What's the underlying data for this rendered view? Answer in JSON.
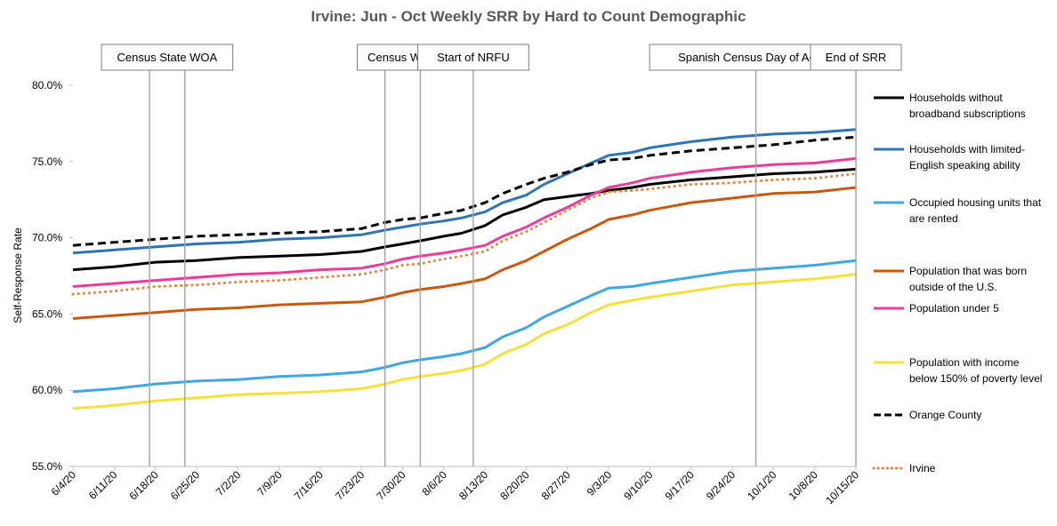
{
  "chart_data": {
    "type": "line",
    "title": "Irvine: Jun - Oct Weekly SRR by Hard to Count Demographic",
    "xlabel": "",
    "ylabel": "Self-Response Rate",
    "ylim": [
      55,
      80
    ],
    "yticks": [
      "55.0%",
      "60.0%",
      "65.0%",
      "70.0%",
      "75.0%",
      "80.0%"
    ],
    "ytick_values": [
      55,
      60,
      65,
      70,
      75,
      80
    ],
    "x_start": "6/4/20",
    "x_end": "10/15/20",
    "x_days": 133,
    "xticks": [
      {
        "label": "6/4/20",
        "day": 0
      },
      {
        "label": "6/11/20",
        "day": 7
      },
      {
        "label": "6/18/20",
        "day": 14
      },
      {
        "label": "6/25/20",
        "day": 21
      },
      {
        "label": "7/2/20",
        "day": 28
      },
      {
        "label": "7/9/20",
        "day": 35
      },
      {
        "label": "7/16/20",
        "day": 42
      },
      {
        "label": "7/23/20",
        "day": 49
      },
      {
        "label": "7/30/20",
        "day": 56
      },
      {
        "label": "8/6/20",
        "day": 63
      },
      {
        "label": "8/13/20",
        "day": 70
      },
      {
        "label": "8/20/20",
        "day": 77
      },
      {
        "label": "8/27/20",
        "day": 84
      },
      {
        "label": "9/3/20",
        "day": 91
      },
      {
        "label": "9/10/20",
        "day": 98
      },
      {
        "label": "9/17/20",
        "day": 105
      },
      {
        "label": "9/24/20",
        "day": 112
      },
      {
        "label": "10/1/20",
        "day": 119
      },
      {
        "label": "10/8/20",
        "day": 126
      },
      {
        "label": "10/15/20",
        "day": 133
      }
    ],
    "annotations": [
      {
        "label": "Census State WOA",
        "days": [
          13,
          19
        ]
      },
      {
        "label": "Census WOA",
        "days": [
          53,
          59
        ]
      },
      {
        "label": "Start of NRFU",
        "days": [
          68
        ]
      },
      {
        "label": "Spanish Census Day of Action",
        "days": [
          116
        ]
      },
      {
        "label": "End of SRR",
        "days": [
          133
        ]
      }
    ],
    "series": [
      {
        "name": "Households without broadband subscriptions",
        "color": "#000000",
        "style": "solid",
        "x": [
          0,
          7,
          14,
          21,
          28,
          35,
          42,
          49,
          53,
          56,
          59,
          63,
          66,
          70,
          73,
          77,
          80,
          84,
          88,
          91,
          95,
          98,
          105,
          112,
          119,
          126,
          133
        ],
        "y": [
          67.9,
          68.1,
          68.4,
          68.5,
          68.7,
          68.8,
          68.9,
          69.1,
          69.4,
          69.6,
          69.8,
          70.1,
          70.3,
          70.8,
          71.5,
          72.0,
          72.5,
          72.7,
          72.9,
          73.1,
          73.3,
          73.5,
          73.8,
          74.0,
          74.2,
          74.3,
          74.5
        ]
      },
      {
        "name": "Households with limited-English speaking ability",
        "color": "#2e75b6",
        "style": "solid",
        "x": [
          0,
          7,
          14,
          21,
          28,
          35,
          42,
          49,
          53,
          56,
          59,
          63,
          66,
          70,
          73,
          77,
          80,
          84,
          88,
          91,
          95,
          98,
          105,
          112,
          119,
          126,
          133
        ],
        "y": [
          69.0,
          69.2,
          69.4,
          69.6,
          69.7,
          69.9,
          70.0,
          70.2,
          70.5,
          70.7,
          70.9,
          71.1,
          71.3,
          71.7,
          72.3,
          72.8,
          73.5,
          74.2,
          74.9,
          75.4,
          75.6,
          75.9,
          76.3,
          76.6,
          76.8,
          76.9,
          77.1
        ]
      },
      {
        "name": "Occupied housing units that are rented",
        "color": "#41a7e0",
        "style": "solid",
        "x": [
          0,
          7,
          14,
          21,
          28,
          35,
          42,
          49,
          53,
          56,
          59,
          63,
          66,
          70,
          73,
          77,
          80,
          84,
          88,
          91,
          95,
          98,
          105,
          112,
          119,
          126,
          133
        ],
        "y": [
          59.9,
          60.1,
          60.4,
          60.6,
          60.7,
          60.9,
          61.0,
          61.2,
          61.5,
          61.8,
          62.0,
          62.2,
          62.4,
          62.8,
          63.5,
          64.1,
          64.8,
          65.5,
          66.2,
          66.7,
          66.8,
          67.0,
          67.4,
          67.8,
          68.0,
          68.2,
          68.5
        ]
      },
      {
        "name": "Population that was born outside of the U.S.",
        "color": "#c55a11",
        "style": "solid",
        "x": [
          0,
          7,
          14,
          21,
          28,
          35,
          42,
          49,
          53,
          56,
          59,
          63,
          66,
          70,
          73,
          77,
          80,
          84,
          88,
          91,
          95,
          98,
          105,
          112,
          119,
          126,
          133
        ],
        "y": [
          64.7,
          64.9,
          65.1,
          65.3,
          65.4,
          65.6,
          65.7,
          65.8,
          66.1,
          66.4,
          66.6,
          66.8,
          67.0,
          67.3,
          67.9,
          68.5,
          69.1,
          69.9,
          70.6,
          71.2,
          71.5,
          71.8,
          72.3,
          72.6,
          72.9,
          73.0,
          73.3
        ]
      },
      {
        "name": "Population under 5",
        "color": "#e83e97",
        "style": "solid",
        "x": [
          0,
          7,
          14,
          21,
          28,
          35,
          42,
          49,
          53,
          56,
          59,
          63,
          66,
          70,
          73,
          77,
          80,
          84,
          88,
          91,
          95,
          98,
          105,
          112,
          119,
          126,
          133
        ],
        "y": [
          66.8,
          67.0,
          67.2,
          67.4,
          67.6,
          67.7,
          67.9,
          68.0,
          68.3,
          68.6,
          68.8,
          69.0,
          69.2,
          69.5,
          70.1,
          70.7,
          71.3,
          72.0,
          72.8,
          73.3,
          73.6,
          73.9,
          74.3,
          74.6,
          74.8,
          74.9,
          75.2
        ]
      },
      {
        "name": "Population with income below 150% of poverty level",
        "color": "#f5e03c",
        "style": "solid",
        "x": [
          0,
          7,
          14,
          21,
          28,
          35,
          42,
          49,
          53,
          56,
          59,
          63,
          66,
          70,
          73,
          77,
          80,
          84,
          88,
          91,
          95,
          98,
          105,
          112,
          119,
          126,
          133
        ],
        "y": [
          58.8,
          59.0,
          59.3,
          59.5,
          59.7,
          59.8,
          59.9,
          60.1,
          60.4,
          60.7,
          60.9,
          61.1,
          61.3,
          61.7,
          62.4,
          63.0,
          63.7,
          64.3,
          65.1,
          65.6,
          65.9,
          66.1,
          66.5,
          66.9,
          67.1,
          67.3,
          67.6
        ]
      },
      {
        "name": "Orange County",
        "color": "#000000",
        "style": "dashed",
        "x": [
          0,
          7,
          14,
          21,
          28,
          35,
          42,
          49,
          53,
          56,
          59,
          63,
          66,
          70,
          73,
          77,
          80,
          84,
          88,
          91,
          95,
          98,
          105,
          112,
          119,
          126,
          133
        ],
        "y": [
          69.5,
          69.7,
          69.9,
          70.1,
          70.2,
          70.3,
          70.4,
          70.6,
          71.0,
          71.2,
          71.3,
          71.6,
          71.8,
          72.3,
          72.9,
          73.5,
          73.9,
          74.3,
          74.8,
          75.1,
          75.2,
          75.4,
          75.7,
          75.9,
          76.1,
          76.4,
          76.6
        ]
      },
      {
        "name": "Irvine",
        "color": "#ed7d31",
        "style": "dotted",
        "x": [
          0,
          7,
          14,
          21,
          28,
          35,
          42,
          49,
          53,
          56,
          59,
          63,
          66,
          70,
          73,
          77,
          80,
          84,
          88,
          91,
          95,
          98,
          105,
          112,
          119,
          126,
          133
        ],
        "y": [
          66.3,
          66.5,
          66.8,
          66.9,
          67.1,
          67.2,
          67.4,
          67.6,
          67.9,
          68.2,
          68.3,
          68.6,
          68.8,
          69.1,
          69.8,
          70.4,
          71.0,
          71.8,
          72.6,
          73.0,
          73.1,
          73.2,
          73.5,
          73.6,
          73.8,
          73.9,
          74.2
        ]
      }
    ],
    "legend": {
      "placement": "right",
      "entries": [
        {
          "lines": [
            "Households without",
            "broadband subscriptions"
          ]
        },
        {
          "lines": [
            "Households with limited-",
            "English speaking ability"
          ]
        },
        {
          "lines": [
            "Occupied housing units that",
            "are rented"
          ]
        },
        {
          "lines": [
            "Population that was born",
            "outside of the U.S."
          ]
        },
        {
          "lines": [
            "Population under 5"
          ]
        },
        {
          "lines": [
            "Population with income",
            "below 150% of poverty level"
          ]
        },
        {
          "lines": [
            "Orange County"
          ]
        },
        {
          "lines": [
            "Irvine"
          ]
        }
      ]
    }
  }
}
